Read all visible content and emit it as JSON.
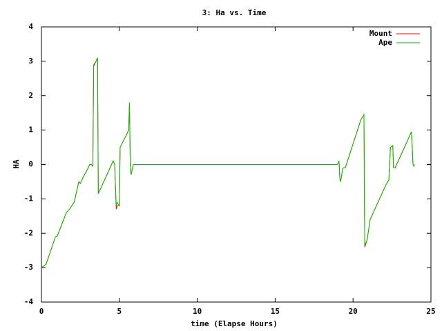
{
  "chart_data": {
    "type": "line",
    "title": "3: Ha vs. Time",
    "x_label": "time (Elapse Hours)",
    "y_label": "HA",
    "x": [
      0,
      0.3,
      0.9,
      1.0,
      1.6,
      1.8,
      2.1,
      2.3,
      2.4,
      2.5,
      2.7,
      3.0,
      3.1,
      3.2,
      3.3,
      3.35,
      3.5,
      3.6,
      3.65,
      3.7,
      4.1,
      4.6,
      4.7,
      4.8,
      4.85,
      5.0,
      5.05,
      5.5,
      5.6,
      5.65,
      5.7,
      5.75,
      5.8,
      5.9,
      19.0,
      19.1,
      19.15,
      19.2,
      19.35,
      19.5,
      20.5,
      20.7,
      20.75,
      20.9,
      21.1,
      22.1,
      22.3,
      22.4,
      22.55,
      22.6,
      22.7,
      23.7,
      23.75,
      23.85,
      23.9,
      23.95
    ],
    "series": [
      {
        "name": "Mount",
        "color": "#ff0000",
        "values": [
          -3.0,
          -2.9,
          -2.1,
          -2.1,
          -1.4,
          -1.3,
          -1.1,
          -0.7,
          -0.5,
          -0.55,
          -0.35,
          -0.1,
          0,
          0,
          -0.05,
          2.85,
          3.0,
          3.1,
          -0.85,
          -0.8,
          -0.4,
          0.1,
          0.0,
          -1.3,
          -1.2,
          -1.2,
          0.5,
          0.9,
          1.0,
          1.8,
          0.05,
          -0.3,
          -0.2,
          0,
          0,
          0.1,
          -0.4,
          -0.5,
          -0.1,
          -0.1,
          1.3,
          1.45,
          -2.4,
          -2.2,
          -1.6,
          -0.6,
          -0.45,
          0.5,
          0.55,
          -0.1,
          -0.1,
          0.9,
          0.95,
          0,
          -0.05,
          0
        ]
      },
      {
        "name": "Ape",
        "color": "#00c000",
        "values": [
          -3.0,
          -2.9,
          -2.1,
          -2.1,
          -1.4,
          -1.3,
          -1.1,
          -0.7,
          -0.5,
          -0.55,
          -0.35,
          -0.1,
          0,
          0,
          -0.05,
          2.9,
          3.0,
          3.1,
          -0.85,
          -0.8,
          -0.4,
          0.1,
          0.0,
          -1.2,
          -1.1,
          -1.2,
          0.5,
          0.9,
          1.0,
          1.8,
          0.05,
          -0.3,
          -0.2,
          0,
          0,
          0.1,
          -0.4,
          -0.5,
          -0.1,
          -0.1,
          1.3,
          1.45,
          -2.35,
          -2.2,
          -1.6,
          -0.6,
          -0.45,
          0.5,
          0.55,
          -0.1,
          -0.1,
          0.9,
          0.95,
          0,
          -0.05,
          0
        ]
      }
    ],
    "xlim": [
      0,
      25
    ],
    "xticks": [
      0,
      5,
      10,
      15,
      20,
      25
    ],
    "ylim": [
      -4,
      4
    ],
    "yticks": [
      -4,
      -3,
      -2,
      -1,
      0,
      1,
      2,
      3,
      4
    ],
    "legend": "upper right"
  }
}
